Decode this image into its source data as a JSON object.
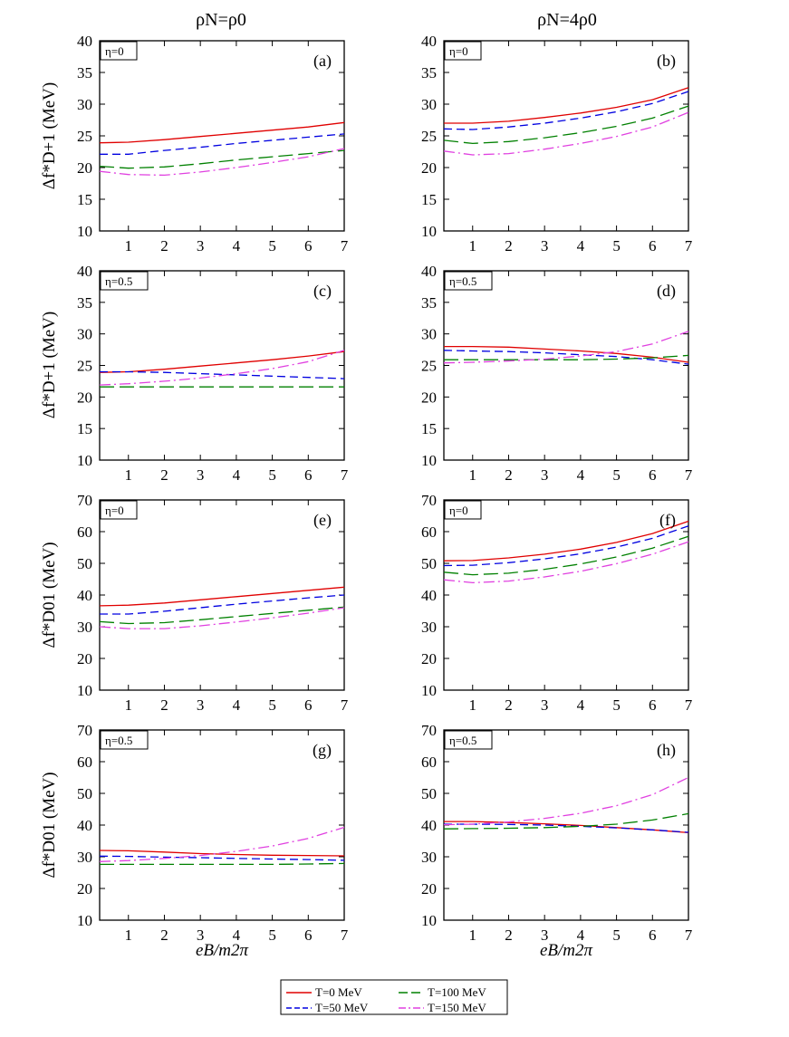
{
  "header": {
    "left_title": "ρN=ρ0",
    "right_title": "ρN=4ρ0"
  },
  "axes": {
    "xlabel": "eB/m2π",
    "ylabel_top": "Δf*D+1 (MeV)",
    "ylabel_bottom": "Δf*D01 (MeV)"
  },
  "colors": {
    "T0": "#e00000",
    "T50": "#0000e0",
    "T100": "#008000",
    "T150": "#e040e0"
  },
  "legend": [
    {
      "key": "T0",
      "label": "T=0 MeV",
      "dash": "solid"
    },
    {
      "key": "T100",
      "label": "T=100 MeV",
      "dash": "long-dash"
    },
    {
      "key": "T50",
      "label": "T=50 MeV",
      "dash": "dash"
    },
    {
      "key": "T150",
      "label": "T=150 MeV",
      "dash": "dash-dot"
    }
  ],
  "chart_data": [
    {
      "type": "line",
      "panel": "(a)",
      "eta": "η=0",
      "xlim": [
        0.2,
        7
      ],
      "ylim": [
        10,
        40
      ],
      "xticks": [
        1,
        2,
        3,
        4,
        5,
        6,
        7
      ],
      "yticks": [
        10,
        15,
        20,
        25,
        30,
        35,
        40
      ],
      "x": [
        0.2,
        1,
        2,
        3,
        4,
        5,
        6,
        7
      ],
      "series": [
        {
          "name": "T=0 MeV",
          "values": [
            23.9,
            24.0,
            24.4,
            24.9,
            25.4,
            25.9,
            26.4,
            27.1
          ]
        },
        {
          "name": "T=50 MeV",
          "values": [
            22.1,
            22.1,
            22.7,
            23.2,
            23.8,
            24.3,
            24.8,
            25.3
          ]
        },
        {
          "name": "T=100 MeV",
          "values": [
            20.2,
            19.9,
            20.1,
            20.6,
            21.2,
            21.7,
            22.2,
            22.7
          ]
        },
        {
          "name": "T=150 MeV",
          "values": [
            19.4,
            18.9,
            18.8,
            19.3,
            20.0,
            20.8,
            21.7,
            23.0
          ]
        }
      ]
    },
    {
      "type": "line",
      "panel": "(b)",
      "eta": "η=0",
      "xlim": [
        0.2,
        7
      ],
      "ylim": [
        10,
        40
      ],
      "xticks": [
        1,
        2,
        3,
        4,
        5,
        6,
        7
      ],
      "yticks": [
        10,
        15,
        20,
        25,
        30,
        35,
        40
      ],
      "x": [
        0.2,
        1,
        2,
        3,
        4,
        5,
        6,
        7
      ],
      "series": [
        {
          "name": "T=0 MeV",
          "values": [
            27.0,
            27.0,
            27.3,
            27.9,
            28.6,
            29.5,
            30.7,
            32.6
          ]
        },
        {
          "name": "T=50 MeV",
          "values": [
            26.1,
            26.0,
            26.4,
            27.0,
            27.8,
            28.8,
            30.1,
            32.0
          ]
        },
        {
          "name": "T=100 MeV",
          "values": [
            24.3,
            23.8,
            24.1,
            24.7,
            25.5,
            26.5,
            27.8,
            29.7
          ]
        },
        {
          "name": "T=150 MeV",
          "values": [
            22.6,
            22.0,
            22.2,
            22.9,
            23.8,
            24.9,
            26.4,
            28.7
          ]
        }
      ]
    },
    {
      "type": "line",
      "panel": "(c)",
      "eta": "η=0.5",
      "xlim": [
        0.2,
        7
      ],
      "ylim": [
        10,
        40
      ],
      "xticks": [
        1,
        2,
        3,
        4,
        5,
        6,
        7
      ],
      "yticks": [
        10,
        15,
        20,
        25,
        30,
        35,
        40
      ],
      "x": [
        0.2,
        1,
        2,
        3,
        4,
        5,
        6,
        7
      ],
      "series": [
        {
          "name": "T=0 MeV",
          "values": [
            23.9,
            24.0,
            24.4,
            24.9,
            25.4,
            25.9,
            26.5,
            27.2
          ]
        },
        {
          "name": "T=50 MeV",
          "values": [
            24.0,
            24.0,
            23.9,
            23.7,
            23.5,
            23.3,
            23.1,
            22.9
          ]
        },
        {
          "name": "T=100 MeV",
          "values": [
            21.6,
            21.6,
            21.6,
            21.6,
            21.6,
            21.6,
            21.6,
            21.6
          ]
        },
        {
          "name": "T=150 MeV",
          "values": [
            21.9,
            22.1,
            22.5,
            23.0,
            23.7,
            24.5,
            25.6,
            27.4
          ]
        }
      ]
    },
    {
      "type": "line",
      "panel": "(d)",
      "eta": "η=0.5",
      "xlim": [
        0.2,
        7
      ],
      "ylim": [
        10,
        40
      ],
      "xticks": [
        1,
        2,
        3,
        4,
        5,
        6,
        7
      ],
      "yticks": [
        10,
        15,
        20,
        25,
        30,
        35,
        40
      ],
      "x": [
        0.2,
        1,
        2,
        3,
        4,
        5,
        6,
        7
      ],
      "series": [
        {
          "name": "T=0 MeV",
          "values": [
            28.0,
            28.0,
            27.9,
            27.6,
            27.3,
            26.9,
            26.3,
            25.5
          ]
        },
        {
          "name": "T=50 MeV",
          "values": [
            27.4,
            27.3,
            27.2,
            27.0,
            26.7,
            26.4,
            25.9,
            25.2
          ]
        },
        {
          "name": "T=100 MeV",
          "values": [
            25.9,
            25.9,
            25.9,
            25.9,
            25.9,
            26.0,
            26.2,
            26.6
          ]
        },
        {
          "name": "T=150 MeV",
          "values": [
            25.4,
            25.5,
            25.7,
            26.0,
            26.5,
            27.2,
            28.4,
            30.4
          ]
        }
      ]
    },
    {
      "type": "line",
      "panel": "(e)",
      "eta": "η=0",
      "xlim": [
        0.2,
        7
      ],
      "ylim": [
        10,
        70
      ],
      "xticks": [
        1,
        2,
        3,
        4,
        5,
        6,
        7
      ],
      "yticks": [
        10,
        20,
        30,
        40,
        50,
        60,
        70
      ],
      "x": [
        0.2,
        1,
        2,
        3,
        4,
        5,
        6,
        7
      ],
      "series": [
        {
          "name": "T=0 MeV",
          "values": [
            36.6,
            36.8,
            37.5,
            38.5,
            39.5,
            40.5,
            41.5,
            42.5
          ]
        },
        {
          "name": "T=50 MeV",
          "values": [
            34.0,
            34.0,
            34.9,
            36.0,
            37.1,
            38.1,
            39.1,
            40.0
          ]
        },
        {
          "name": "T=100 MeV",
          "values": [
            31.6,
            31.0,
            31.3,
            32.2,
            33.2,
            34.2,
            35.2,
            36.2
          ]
        },
        {
          "name": "T=150 MeV",
          "values": [
            30.0,
            29.4,
            29.4,
            30.3,
            31.5,
            32.8,
            34.3,
            36.0
          ]
        }
      ]
    },
    {
      "type": "line",
      "panel": "(f)",
      "eta": "η=0",
      "xlim": [
        0.2,
        7
      ],
      "ylim": [
        10,
        70
      ],
      "xticks": [
        1,
        2,
        3,
        4,
        5,
        6,
        7
      ],
      "yticks": [
        10,
        20,
        30,
        40,
        50,
        60,
        70
      ],
      "x": [
        0.2,
        1,
        2,
        3,
        4,
        5,
        6,
        7
      ],
      "series": [
        {
          "name": "T=0 MeV",
          "values": [
            50.8,
            50.9,
            51.7,
            52.9,
            54.5,
            56.6,
            59.4,
            63.3
          ]
        },
        {
          "name": "T=50 MeV",
          "values": [
            49.3,
            49.4,
            50.2,
            51.4,
            53.0,
            55.1,
            57.9,
            61.8
          ]
        },
        {
          "name": "T=100 MeV",
          "values": [
            47.2,
            46.4,
            46.9,
            48.1,
            49.8,
            52.0,
            54.8,
            58.5
          ]
        },
        {
          "name": "T=150 MeV",
          "values": [
            44.8,
            43.9,
            44.4,
            45.7,
            47.5,
            49.9,
            52.9,
            56.8
          ]
        }
      ]
    },
    {
      "type": "line",
      "panel": "(g)",
      "eta": "η=0.5",
      "xlim": [
        0.2,
        7
      ],
      "ylim": [
        10,
        70
      ],
      "xticks": [
        1,
        2,
        3,
        4,
        5,
        6,
        7
      ],
      "yticks": [
        10,
        20,
        30,
        40,
        50,
        60,
        70
      ],
      "x": [
        0.2,
        1,
        2,
        3,
        4,
        5,
        6,
        7
      ],
      "series": [
        {
          "name": "T=0 MeV",
          "values": [
            32.0,
            31.9,
            31.5,
            31.0,
            30.7,
            30.5,
            30.4,
            30.3
          ]
        },
        {
          "name": "T=50 MeV",
          "values": [
            30.2,
            30.1,
            29.9,
            29.7,
            29.5,
            29.3,
            29.1,
            28.9
          ]
        },
        {
          "name": "T=100 MeV",
          "values": [
            27.6,
            27.6,
            27.6,
            27.6,
            27.6,
            27.6,
            27.7,
            27.9
          ]
        },
        {
          "name": "T=150 MeV",
          "values": [
            28.5,
            28.8,
            29.5,
            30.4,
            31.7,
            33.4,
            35.8,
            39.3
          ]
        }
      ]
    },
    {
      "type": "line",
      "panel": "(h)",
      "eta": "η=0.5",
      "xlim": [
        0.2,
        7
      ],
      "ylim": [
        10,
        70
      ],
      "xticks": [
        1,
        2,
        3,
        4,
        5,
        6,
        7
      ],
      "yticks": [
        10,
        20,
        30,
        40,
        50,
        60,
        70
      ],
      "x": [
        0.2,
        1,
        2,
        3,
        4,
        5,
        6,
        7
      ],
      "series": [
        {
          "name": "T=0 MeV",
          "values": [
            41.1,
            41.1,
            40.8,
            40.4,
            39.9,
            39.2,
            38.5,
            37.6
          ]
        },
        {
          "name": "T=50 MeV",
          "values": [
            40.3,
            40.3,
            40.2,
            40.0,
            39.6,
            39.1,
            38.5,
            37.7
          ]
        },
        {
          "name": "T=100 MeV",
          "values": [
            38.8,
            38.9,
            39.0,
            39.2,
            39.6,
            40.3,
            41.6,
            43.6
          ]
        },
        {
          "name": "T=150 MeV",
          "values": [
            40.1,
            40.3,
            41.0,
            42.1,
            43.7,
            46.1,
            49.6,
            55.0
          ]
        }
      ]
    }
  ]
}
